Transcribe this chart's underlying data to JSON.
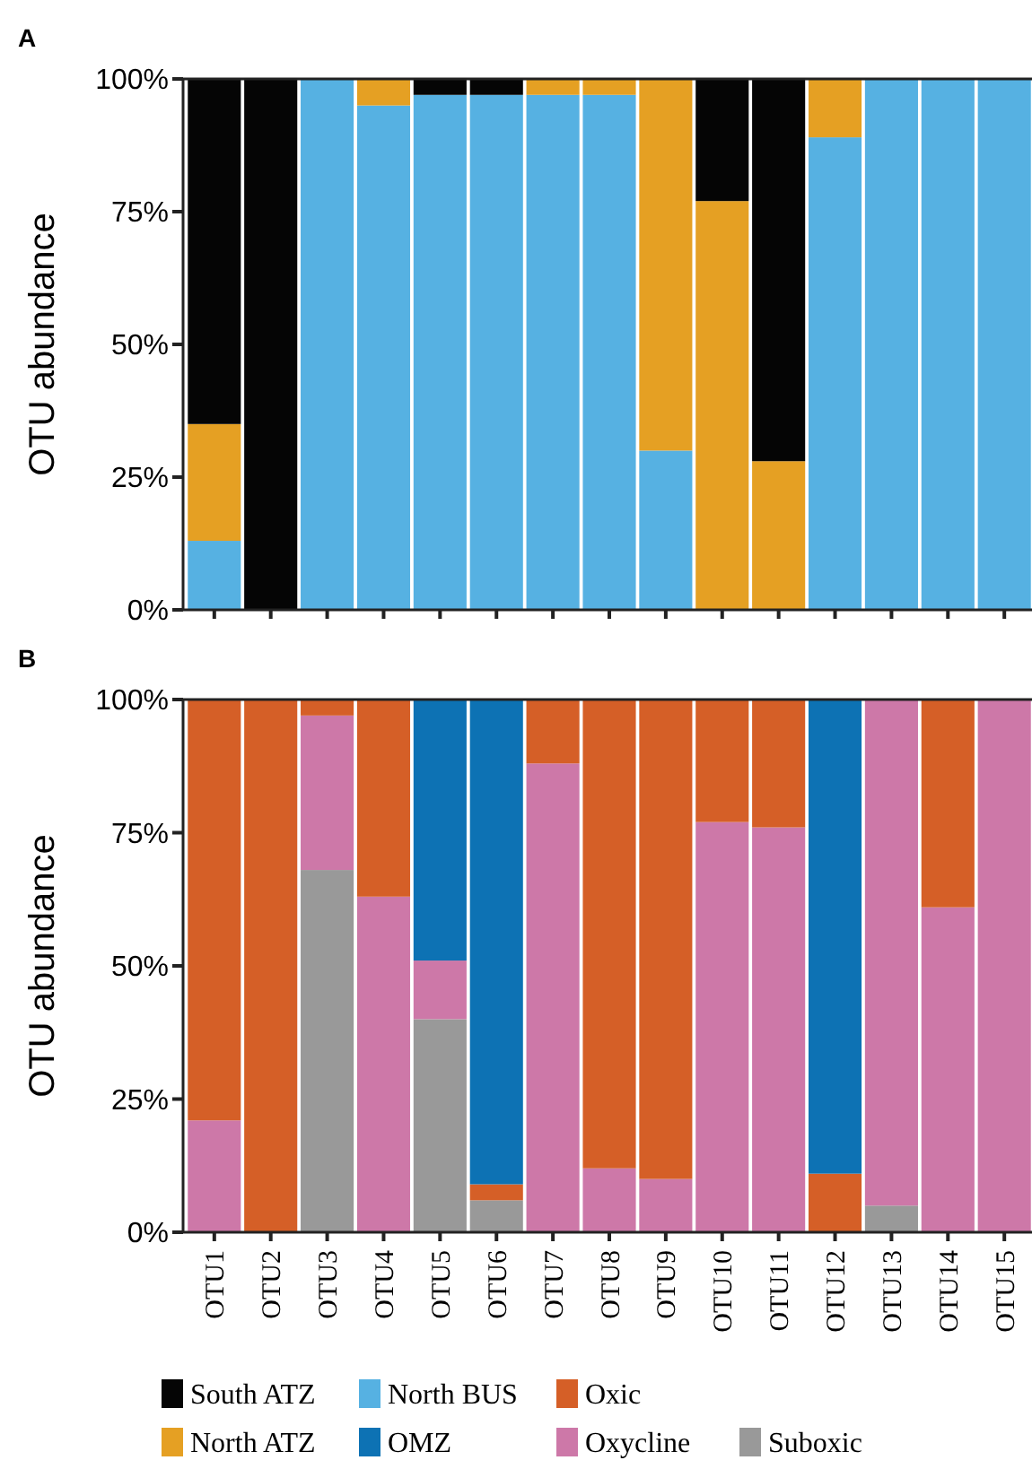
{
  "chart_data": [
    {
      "type": "bar",
      "title": "A",
      "ylabel": "OTU abundance",
      "stacked": true,
      "legend": "bottom",
      "tick_labels": "y",
      "categories": [
        null,
        null,
        null,
        null,
        null,
        null,
        null,
        null,
        null,
        null,
        null,
        null,
        null,
        null,
        null
      ],
      "ylim": [
        0,
        100
      ],
      "yticks": [
        {
          "value": 0,
          "label": "0%"
        },
        {
          "value": 25,
          "label": "25%"
        },
        {
          "value": 50,
          "label": "50%"
        },
        {
          "value": 75,
          "label": "75%"
        },
        {
          "value": 100,
          "label": "100%"
        }
      ],
      "series": [
        {
          "name": "North BUS",
          "color": "#56b1e2",
          "values": [
            13,
            0,
            100,
            95,
            97,
            97,
            97,
            97,
            30,
            0,
            0,
            89,
            100,
            100,
            100
          ]
        },
        {
          "name": "North ATZ",
          "color": "#e5a023",
          "values": [
            22,
            0,
            0,
            5,
            0,
            0,
            3,
            3,
            70,
            77,
            28,
            11,
            0,
            0,
            0
          ]
        },
        {
          "name": "South ATZ",
          "color": "#050505",
          "values": [
            65,
            100,
            0,
            0,
            3,
            3,
            0,
            0,
            0,
            23,
            72,
            0,
            0,
            0,
            0
          ]
        }
      ]
    },
    {
      "type": "bar",
      "title": "B",
      "ylabel": "OTU abundance",
      "stacked": true,
      "legend": "bottom",
      "categories": [
        "OTU1",
        "OTU2",
        "OTU3",
        "OTU4",
        "OTU5",
        "OTU6",
        "OTU7",
        "OTU8",
        "OTU9",
        "OTU10",
        "OTU11",
        "OTU12",
        "OTU13",
        "OTU14",
        "OTU15"
      ],
      "ylim": [
        0,
        100
      ],
      "yticks": [
        {
          "value": 0,
          "label": "0%"
        },
        {
          "value": 25,
          "label": "25%"
        },
        {
          "value": 50,
          "label": "50%"
        },
        {
          "value": 75,
          "label": "75%"
        },
        {
          "value": 100,
          "label": "100%"
        }
      ],
      "series": [
        {
          "name": "Suboxic",
          "color": "#999999",
          "values": [
            0,
            0,
            68,
            0,
            40,
            6,
            0,
            0,
            0,
            0,
            0,
            0,
            5,
            0,
            0
          ]
        },
        {
          "name": "Oxycline",
          "color": "#cd78a8",
          "values": [
            21,
            0,
            29,
            63,
            11,
            0,
            88,
            12,
            10,
            77,
            76,
            0,
            95,
            61,
            100
          ]
        },
        {
          "name": "Oxic",
          "color": "#d55f27",
          "values": [
            79,
            100,
            3,
            37,
            0,
            3,
            12,
            88,
            90,
            23,
            24,
            11,
            0,
            39,
            0
          ]
        },
        {
          "name": "OMZ",
          "color": "#0d72b4",
          "values": [
            0,
            0,
            0,
            0,
            49,
            91,
            0,
            0,
            0,
            0,
            0,
            89,
            0,
            0,
            0
          ]
        }
      ]
    }
  ]
}
